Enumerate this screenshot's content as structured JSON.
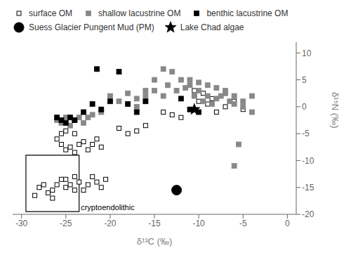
{
  "chart_data": {
    "type": "scatter",
    "xlabel": "δ¹³C (‰)",
    "ylabel": "δ¹⁵N (‰)",
    "xlim": [
      -31,
      1
    ],
    "ylim": [
      -20,
      12
    ],
    "xticks": [
      -30,
      -25,
      -20,
      -15,
      -10,
      -5,
      0
    ],
    "yticks": [
      -20,
      -15,
      -10,
      -5,
      0,
      5,
      10
    ],
    "grid": false,
    "legend": "upper left",
    "series": [
      {
        "name": "surface OM",
        "color": "black",
        "marker": "square_open",
        "values": [
          [
            -28.5,
            -16.5
          ],
          [
            -28,
            -15
          ],
          [
            -27.5,
            -14.5
          ],
          [
            -27,
            -16
          ],
          [
            -26.5,
            -17
          ],
          [
            -26.5,
            -15.5
          ],
          [
            -26,
            -14.5
          ],
          [
            -25.5,
            -13.5
          ],
          [
            -25,
            -15
          ],
          [
            -25,
            -13.5
          ],
          [
            -24.5,
            -14.5
          ],
          [
            -24,
            -13
          ],
          [
            -24,
            -15.5
          ],
          [
            -23.5,
            -14
          ],
          [
            -23,
            -15.5
          ],
          [
            -22.5,
            -14.5
          ],
          [
            -22,
            -13
          ],
          [
            -21.5,
            -14
          ],
          [
            -21,
            -15
          ],
          [
            -20.5,
            -13.5
          ],
          [
            -25.5,
            -7
          ],
          [
            -25,
            -8
          ],
          [
            -24.5,
            -7.5
          ],
          [
            -24,
            -8.5
          ],
          [
            -23.5,
            -7
          ],
          [
            -23,
            -6.5
          ],
          [
            -22.5,
            -8
          ],
          [
            -22,
            -7
          ],
          [
            -21.5,
            -6
          ],
          [
            -21,
            -7.5
          ],
          [
            -26,
            -6
          ],
          [
            -25.5,
            -5
          ],
          [
            -25,
            -4.5
          ],
          [
            -24,
            -5
          ],
          [
            -19,
            -4
          ],
          [
            -18,
            -5
          ],
          [
            -17,
            -4.5
          ],
          [
            -16,
            -3.5
          ],
          [
            -14,
            -1
          ],
          [
            -13,
            -1.5
          ],
          [
            -12,
            -2
          ],
          [
            -11,
            -0.5
          ],
          [
            -10,
            1
          ],
          [
            -10.5,
            2
          ],
          [
            -9,
            0.5
          ],
          [
            -8,
            -1
          ],
          [
            -7,
            0
          ],
          [
            -6,
            1
          ],
          [
            -5,
            -0.5
          ],
          [
            -10.5,
            3
          ],
          [
            -9.5,
            2.5
          ],
          [
            -8.5,
            1.5
          ]
        ]
      },
      {
        "name": "shallow lacustrine OM",
        "color": "#888888",
        "marker": "square",
        "values": [
          [
            -26,
            -2.5
          ],
          [
            -25.5,
            -3
          ],
          [
            -25,
            -2
          ],
          [
            -24.5,
            -3.5
          ],
          [
            -24,
            -2.5
          ],
          [
            -23.5,
            -2
          ],
          [
            -23,
            -3
          ],
          [
            -22.5,
            -2
          ],
          [
            -22,
            -1.5
          ],
          [
            -21,
            -1
          ],
          [
            -20,
            2
          ],
          [
            -19,
            1
          ],
          [
            -18,
            2.5
          ],
          [
            -17,
            1.5
          ],
          [
            -16,
            3
          ],
          [
            -15,
            5
          ],
          [
            -14,
            7
          ],
          [
            -13,
            6.5
          ],
          [
            -12,
            5
          ],
          [
            -11,
            4
          ],
          [
            -10,
            3
          ],
          [
            -9,
            2
          ],
          [
            -8,
            1.5
          ],
          [
            -7,
            3
          ],
          [
            -6,
            2
          ],
          [
            -5,
            0
          ],
          [
            -4,
            -1
          ],
          [
            -5.5,
            -7
          ],
          [
            -6,
            -11
          ],
          [
            -13.5,
            4
          ],
          [
            -12.5,
            3
          ],
          [
            -11.5,
            3.5
          ],
          [
            -10.5,
            2
          ],
          [
            -9.5,
            1
          ],
          [
            -8.5,
            0.5
          ],
          [
            -7.5,
            2
          ],
          [
            -6.5,
            1
          ],
          [
            -14,
            2
          ],
          [
            -15,
            3
          ],
          [
            -16,
            2
          ],
          [
            -17,
            0
          ],
          [
            -11,
            5
          ],
          [
            -10,
            4.5
          ],
          [
            -9,
            4
          ],
          [
            -8,
            3.5
          ],
          [
            -7,
            2.5
          ],
          [
            -6,
            0.5
          ],
          [
            -5,
            1
          ],
          [
            -4,
            2
          ]
        ]
      },
      {
        "name": "benthic lacustrine OM",
        "color": "black",
        "marker": "square",
        "values": [
          [
            -26,
            -2
          ],
          [
            -25.5,
            -2.5
          ],
          [
            -25,
            -3
          ],
          [
            -24.5,
            -2
          ],
          [
            -24,
            -2.5
          ],
          [
            -23,
            -1
          ],
          [
            -22,
            0.5
          ],
          [
            -21,
            -0.5
          ],
          [
            -20,
            1
          ],
          [
            -19,
            6.5
          ],
          [
            -18,
            0.5
          ],
          [
            -17,
            -1
          ],
          [
            -16,
            1
          ],
          [
            -12,
            1.5
          ],
          [
            -11,
            -0.5
          ],
          [
            -10,
            -1
          ],
          [
            -21.5,
            7
          ]
        ]
      },
      {
        "name": "Suess Glacier Pungent Mud (PM)",
        "color": "black",
        "marker": "circle",
        "values": [
          [
            -12.5,
            -15.5
          ]
        ]
      },
      {
        "name": "Lake Chad algae",
        "color": "black",
        "marker": "star",
        "values": [
          [
            -10.5,
            -0.5
          ]
        ]
      }
    ],
    "rectangles": [
      {
        "x": -29.5,
        "y": -19.5,
        "width": 6.0,
        "height": 10.5,
        "color": "black"
      }
    ],
    "annotations": [
      {
        "text": "cryptoendolithic",
        "x": -23.3,
        "y": -19.2
      }
    ]
  }
}
